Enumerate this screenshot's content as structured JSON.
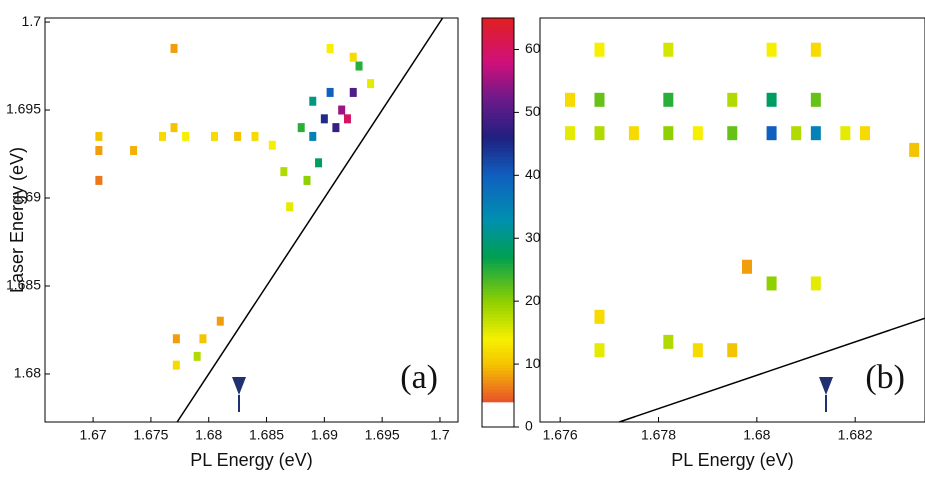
{
  "chart_data": [
    {
      "type": "heatmap-points",
      "xlabel": "PL Energy (eV)",
      "ylabel": "Laser Energy (eV)",
      "panel_label": "(a)",
      "xlim": [
        1.66584,
        1.70156
      ],
      "ylim": [
        1.67727,
        1.70023
      ],
      "xticks": [
        1.67,
        1.675,
        1.68,
        1.685,
        1.69,
        1.695,
        1.7
      ],
      "yticks": [
        1.68,
        1.685,
        1.69,
        1.695,
        1.7
      ],
      "points": [
        [
          1.6705,
          1.6927,
          8
        ],
        [
          1.6705,
          1.691,
          6
        ],
        [
          1.6705,
          1.6935,
          10
        ],
        [
          1.6735,
          1.6927,
          9
        ],
        [
          1.676,
          1.6935,
          12
        ],
        [
          1.677,
          1.694,
          10
        ],
        [
          1.677,
          1.6985,
          8
        ],
        [
          1.6772,
          1.682,
          8
        ],
        [
          1.6772,
          1.6805,
          12
        ],
        [
          1.678,
          1.6935,
          14
        ],
        [
          1.679,
          1.681,
          18
        ],
        [
          1.6795,
          1.682,
          10
        ],
        [
          1.6805,
          1.6935,
          12
        ],
        [
          1.681,
          1.683,
          8
        ],
        [
          1.6825,
          1.6935,
          10
        ],
        [
          1.684,
          1.6935,
          12
        ],
        [
          1.6855,
          1.693,
          14
        ],
        [
          1.6865,
          1.6915,
          18
        ],
        [
          1.687,
          1.6895,
          15
        ],
        [
          1.688,
          1.694,
          25
        ],
        [
          1.6885,
          1.691,
          20
        ],
        [
          1.689,
          1.6955,
          30
        ],
        [
          1.689,
          1.6935,
          35
        ],
        [
          1.6895,
          1.692,
          28
        ],
        [
          1.69,
          1.6945,
          45
        ],
        [
          1.6905,
          1.696,
          40
        ],
        [
          1.691,
          1.694,
          48
        ],
        [
          1.6915,
          1.695,
          55
        ],
        [
          1.692,
          1.6945,
          60
        ],
        [
          1.6925,
          1.696,
          50
        ],
        [
          1.693,
          1.6975,
          25
        ],
        [
          1.694,
          1.6965,
          15
        ],
        [
          1.6925,
          1.698,
          12
        ],
        [
          1.6905,
          1.6985,
          14
        ]
      ]
    },
    {
      "type": "colorbar",
      "ylim": [
        0,
        65
      ],
      "yticks": [
        0,
        10,
        20,
        30,
        40,
        50,
        60
      ],
      "colormap": [
        {
          "value": 0,
          "color": "#ffffff"
        },
        {
          "value": 3.9,
          "color": "#ffffff"
        },
        {
          "value": 4,
          "color": "#e8502a"
        },
        {
          "value": 10,
          "color": "#f5c400"
        },
        {
          "value": 14,
          "color": "#f6f000"
        },
        {
          "value": 20,
          "color": "#8fd000"
        },
        {
          "value": 27,
          "color": "#00a050"
        },
        {
          "value": 33,
          "color": "#0090b0"
        },
        {
          "value": 40,
          "color": "#1060c0"
        },
        {
          "value": 46,
          "color": "#202080"
        },
        {
          "value": 52,
          "color": "#6a1a8a"
        },
        {
          "value": 58,
          "color": "#d0107a"
        },
        {
          "value": 65,
          "color": "#e02020"
        }
      ]
    },
    {
      "type": "heatmap-points",
      "xlabel": "PL Energy (eV)",
      "panel_label": "(b)",
      "xlim": [
        1.67559,
        1.68342
      ],
      "ylim": [
        1.6772,
        1.7014
      ],
      "xticks": [
        1.676,
        1.678,
        1.68,
        1.682
      ],
      "points": [
        [
          1.6762,
          1.6965,
          12
        ],
        [
          1.6762,
          1.6945,
          15
        ],
        [
          1.6768,
          1.6995,
          14
        ],
        [
          1.6768,
          1.6965,
          22
        ],
        [
          1.6768,
          1.6945,
          18
        ],
        [
          1.6775,
          1.6945,
          12
        ],
        [
          1.6782,
          1.6995,
          16
        ],
        [
          1.6782,
          1.6965,
          25
        ],
        [
          1.6782,
          1.6945,
          20
        ],
        [
          1.6788,
          1.6945,
          14
        ],
        [
          1.6795,
          1.6965,
          18
        ],
        [
          1.6795,
          1.6945,
          22
        ],
        [
          1.6803,
          1.6995,
          14
        ],
        [
          1.6803,
          1.6965,
          28
        ],
        [
          1.6803,
          1.6945,
          40
        ],
        [
          1.6808,
          1.6945,
          18
        ],
        [
          1.6812,
          1.6995,
          12
        ],
        [
          1.6812,
          1.6965,
          22
        ],
        [
          1.6812,
          1.6945,
          35
        ],
        [
          1.6818,
          1.6945,
          15
        ],
        [
          1.6822,
          1.6945,
          12
        ],
        [
          1.6832,
          1.6935,
          10
        ],
        [
          1.6768,
          1.6835,
          12
        ],
        [
          1.6768,
          1.6815,
          15
        ],
        [
          1.6782,
          1.682,
          18
        ],
        [
          1.6788,
          1.6815,
          12
        ],
        [
          1.6795,
          1.6815,
          10
        ],
        [
          1.6798,
          1.6865,
          8
        ],
        [
          1.6803,
          1.6855,
          20
        ],
        [
          1.6812,
          1.6855,
          15
        ]
      ]
    }
  ]
}
